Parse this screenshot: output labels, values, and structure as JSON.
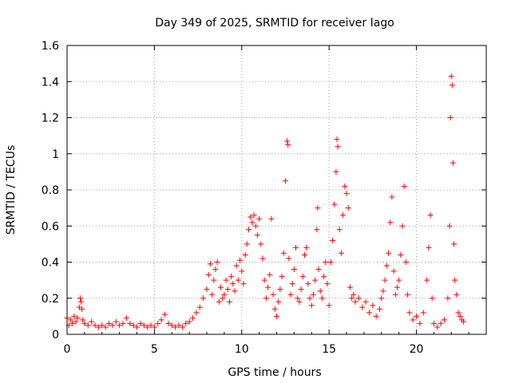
{
  "chart_data": {
    "type": "scatter",
    "title": "Day 349 of 2025, SRMTID for receiver Iago",
    "xlabel": "GPS time / hours",
    "ylabel": "SRMTID / TECUs",
    "xlim": [
      0,
      24
    ],
    "ylim": [
      0,
      1.6
    ],
    "xticks": [
      0,
      5,
      10,
      15,
      20
    ],
    "xtick_labels": [
      "0",
      "5",
      "10",
      "15",
      "20"
    ],
    "yticks": [
      0,
      0.2,
      0.4,
      0.6,
      0.8,
      1.0,
      1.2,
      1.4,
      1.6
    ],
    "ytick_labels": [
      "0",
      "0.2",
      "0.4",
      "0.6",
      "0.8",
      "1",
      "1.2",
      "1.4",
      "1.6"
    ],
    "grid": true,
    "marker": "+",
    "marker_color": "#ff0000",
    "series": [
      {
        "name": "SRMTID",
        "points": [
          [
            0.0,
            0.09
          ],
          [
            0.1,
            0.05
          ],
          [
            0.2,
            0.08
          ],
          [
            0.3,
            0.06
          ],
          [
            0.4,
            0.1
          ],
          [
            0.5,
            0.07
          ],
          [
            0.6,
            0.09
          ],
          [
            0.7,
            0.15
          ],
          [
            0.75,
            0.2
          ],
          [
            0.8,
            0.18
          ],
          [
            0.85,
            0.14
          ],
          [
            0.9,
            0.08
          ],
          [
            1.0,
            0.06
          ],
          [
            1.2,
            0.05
          ],
          [
            1.4,
            0.07
          ],
          [
            1.6,
            0.05
          ],
          [
            1.8,
            0.04
          ],
          [
            2.0,
            0.05
          ],
          [
            2.2,
            0.04
          ],
          [
            2.4,
            0.06
          ],
          [
            2.6,
            0.05
          ],
          [
            2.8,
            0.07
          ],
          [
            3.0,
            0.05
          ],
          [
            3.2,
            0.06
          ],
          [
            3.4,
            0.09
          ],
          [
            3.6,
            0.06
          ],
          [
            3.8,
            0.05
          ],
          [
            4.0,
            0.04
          ],
          [
            4.2,
            0.06
          ],
          [
            4.4,
            0.05
          ],
          [
            4.6,
            0.04
          ],
          [
            4.8,
            0.05
          ],
          [
            5.0,
            0.04
          ],
          [
            5.2,
            0.06
          ],
          [
            5.4,
            0.08
          ],
          [
            5.6,
            0.11
          ],
          [
            5.8,
            0.06
          ],
          [
            6.0,
            0.05
          ],
          [
            6.2,
            0.04
          ],
          [
            6.4,
            0.05
          ],
          [
            6.6,
            0.04
          ],
          [
            6.8,
            0.06
          ],
          [
            7.0,
            0.07
          ],
          [
            7.2,
            0.09
          ],
          [
            7.4,
            0.12
          ],
          [
            7.6,
            0.15
          ],
          [
            7.8,
            0.2
          ],
          [
            8.0,
            0.25
          ],
          [
            8.1,
            0.33
          ],
          [
            8.2,
            0.39
          ],
          [
            8.3,
            0.22
          ],
          [
            8.4,
            0.3
          ],
          [
            8.5,
            0.36
          ],
          [
            8.6,
            0.4
          ],
          [
            8.7,
            0.18
          ],
          [
            8.8,
            0.26
          ],
          [
            8.9,
            0.2
          ],
          [
            9.0,
            0.22
          ],
          [
            9.1,
            0.3
          ],
          [
            9.2,
            0.25
          ],
          [
            9.3,
            0.18
          ],
          [
            9.4,
            0.32
          ],
          [
            9.5,
            0.28
          ],
          [
            9.6,
            0.24
          ],
          [
            9.7,
            0.38
          ],
          [
            9.8,
            0.3
          ],
          [
            9.9,
            0.41
          ],
          [
            10.0,
            0.35
          ],
          [
            10.1,
            0.28
          ],
          [
            10.2,
            0.44
          ],
          [
            10.3,
            0.5
          ],
          [
            10.4,
            0.58
          ],
          [
            10.5,
            0.65
          ],
          [
            10.6,
            0.62
          ],
          [
            10.7,
            0.66
          ],
          [
            10.8,
            0.6
          ],
          [
            10.9,
            0.55
          ],
          [
            11.0,
            0.64
          ],
          [
            11.1,
            0.5
          ],
          [
            11.2,
            0.42
          ],
          [
            11.3,
            0.3
          ],
          [
            11.4,
            0.2
          ],
          [
            11.5,
            0.26
          ],
          [
            11.6,
            0.33
          ],
          [
            11.7,
            0.64
          ],
          [
            11.8,
            0.22
          ],
          [
            11.9,
            0.14
          ],
          [
            12.0,
            0.1
          ],
          [
            12.1,
            0.18
          ],
          [
            12.2,
            0.25
          ],
          [
            12.3,
            0.32
          ],
          [
            12.4,
            0.45
          ],
          [
            12.5,
            0.85
          ],
          [
            12.6,
            1.07
          ],
          [
            12.65,
            1.05
          ],
          [
            12.7,
            0.42
          ],
          [
            12.8,
            0.22
          ],
          [
            12.9,
            0.28
          ],
          [
            13.0,
            0.36
          ],
          [
            13.1,
            0.48
          ],
          [
            13.2,
            0.2
          ],
          [
            13.3,
            0.18
          ],
          [
            13.4,
            0.25
          ],
          [
            13.5,
            0.32
          ],
          [
            13.6,
            0.44
          ],
          [
            13.7,
            0.48
          ],
          [
            13.8,
            0.28
          ],
          [
            13.9,
            0.2
          ],
          [
            14.0,
            0.16
          ],
          [
            14.1,
            0.22
          ],
          [
            14.2,
            0.3
          ],
          [
            14.3,
            0.58
          ],
          [
            14.35,
            0.7
          ],
          [
            14.4,
            0.36
          ],
          [
            14.5,
            0.24
          ],
          [
            14.6,
            0.2
          ],
          [
            14.7,
            0.32
          ],
          [
            14.8,
            0.4
          ],
          [
            14.9,
            0.28
          ],
          [
            15.0,
            0.16
          ],
          [
            15.1,
            0.4
          ],
          [
            15.2,
            0.52
          ],
          [
            15.3,
            0.72
          ],
          [
            15.4,
            0.9
          ],
          [
            15.45,
            1.08
          ],
          [
            15.5,
            1.04
          ],
          [
            15.6,
            0.58
          ],
          [
            15.7,
            0.45
          ],
          [
            15.8,
            0.66
          ],
          [
            15.9,
            0.82
          ],
          [
            16.0,
            0.78
          ],
          [
            16.1,
            0.7
          ],
          [
            16.2,
            0.26
          ],
          [
            16.3,
            0.2
          ],
          [
            16.4,
            0.22
          ],
          [
            16.5,
            0.18
          ],
          [
            16.7,
            0.2
          ],
          [
            16.9,
            0.15
          ],
          [
            17.1,
            0.18
          ],
          [
            17.3,
            0.12
          ],
          [
            17.5,
            0.16
          ],
          [
            17.7,
            0.1
          ],
          [
            17.9,
            0.14
          ],
          [
            18.0,
            0.2
          ],
          [
            18.1,
            0.24
          ],
          [
            18.2,
            0.3
          ],
          [
            18.3,
            0.38
          ],
          [
            18.4,
            0.45
          ],
          [
            18.5,
            0.62
          ],
          [
            18.6,
            0.76
          ],
          [
            18.7,
            0.35
          ],
          [
            18.8,
            0.22
          ],
          [
            18.9,
            0.26
          ],
          [
            19.0,
            0.3
          ],
          [
            19.1,
            0.44
          ],
          [
            19.2,
            0.6
          ],
          [
            19.3,
            0.82
          ],
          [
            19.4,
            0.4
          ],
          [
            19.5,
            0.22
          ],
          [
            19.6,
            0.12
          ],
          [
            19.8,
            0.08
          ],
          [
            20.0,
            0.1
          ],
          [
            20.2,
            0.06
          ],
          [
            20.4,
            0.12
          ],
          [
            20.6,
            0.3
          ],
          [
            20.7,
            0.48
          ],
          [
            20.8,
            0.66
          ],
          [
            20.9,
            0.2
          ],
          [
            21.0,
            0.06
          ],
          [
            21.2,
            0.04
          ],
          [
            21.4,
            0.06
          ],
          [
            21.6,
            0.08
          ],
          [
            21.8,
            0.2
          ],
          [
            21.9,
            0.6
          ],
          [
            21.95,
            1.2
          ],
          [
            22.0,
            1.43
          ],
          [
            22.05,
            1.38
          ],
          [
            22.1,
            0.95
          ],
          [
            22.15,
            0.5
          ],
          [
            22.2,
            0.3
          ],
          [
            22.3,
            0.22
          ],
          [
            22.4,
            0.12
          ],
          [
            22.5,
            0.1
          ],
          [
            22.6,
            0.08
          ],
          [
            22.7,
            0.07
          ]
        ]
      }
    ]
  }
}
